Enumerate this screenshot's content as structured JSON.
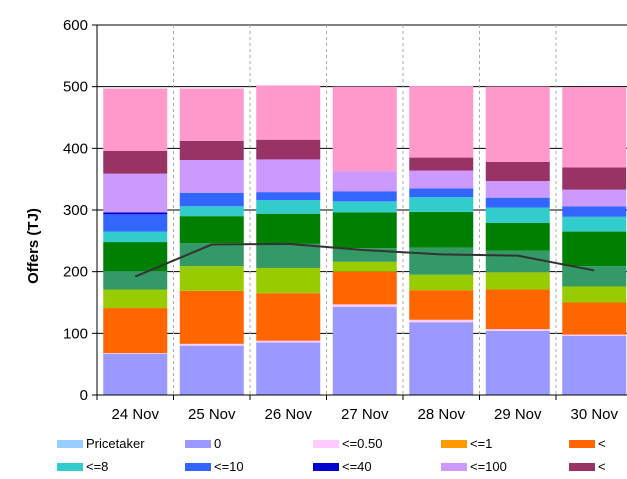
{
  "chart_data": {
    "type": "bar",
    "stacked": true,
    "categories": [
      "24 Nov",
      "25 Nov",
      "26 Nov",
      "27 Nov",
      "28 Nov",
      "29 Nov",
      "30 Nov"
    ],
    "ylabel": "Offers (TJ)",
    "ylim": [
      0,
      600
    ],
    "yticks": [
      0,
      100,
      200,
      300,
      400,
      500,
      600
    ],
    "grid": "horizontal solid, vertical dashed between categories",
    "legend_position": "bottom",
    "series": [
      {
        "name": "Pricetaker",
        "color": "#99ccff",
        "values": [
          0,
          0,
          0,
          0,
          0,
          0,
          0
        ]
      },
      {
        "name": "0",
        "color": "#9999ff",
        "values": [
          67,
          80,
          85,
          143,
          118,
          104,
          96
        ]
      },
      {
        "name": "<=0.50",
        "color": "#ffccff",
        "values": [
          1,
          3,
          3,
          4,
          4,
          3,
          2
        ]
      },
      {
        "name": "<=1",
        "color": "#ff9900",
        "values": [
          0,
          0,
          0,
          0,
          0,
          0,
          0
        ]
      },
      {
        "name": "<",
        "color": "#ff6600",
        "values": [
          73,
          86,
          77,
          53,
          48,
          64,
          52
        ]
      },
      {
        "name": "",
        "color": "#99cc00",
        "values": [
          30,
          40,
          41,
          16,
          25,
          28,
          26
        ]
      },
      {
        "name": "",
        "color": "#339966",
        "values": [
          30,
          37,
          39,
          22,
          44,
          35,
          33
        ]
      },
      {
        "name": "",
        "color": "#008000",
        "values": [
          47,
          44,
          49,
          58,
          58,
          45,
          56
        ]
      },
      {
        "name": "<=8",
        "color": "#33cccc",
        "values": [
          17,
          16,
          22,
          18,
          24,
          25,
          24
        ]
      },
      {
        "name": "<=10",
        "color": "#3366ff",
        "values": [
          28,
          22,
          13,
          16,
          14,
          16,
          17
        ]
      },
      {
        "name": "<=40",
        "color": "#0000cc",
        "values": [
          3,
          0,
          0,
          0,
          0,
          0,
          0
        ]
      },
      {
        "name": "<=100",
        "color": "#cc99ff",
        "values": [
          63,
          53,
          53,
          33,
          29,
          27,
          27
        ]
      },
      {
        "name": "<",
        "color": "#993366",
        "values": [
          37,
          31,
          32,
          0,
          21,
          31,
          36
        ]
      },
      {
        "name": "",
        "color": "#ff99cc",
        "values": [
          101,
          85,
          88,
          137,
          116,
          122,
          130
        ]
      }
    ],
    "line_series": {
      "name": "",
      "color": "#333333",
      "values": [
        192,
        244,
        245,
        235,
        228,
        226,
        202
      ]
    }
  },
  "legend": [
    {
      "label": "Pricetaker",
      "color": "#99ccff"
    },
    {
      "label": "0",
      "color": "#9999ff"
    },
    {
      "label": "<=0.50",
      "color": "#ffccff"
    },
    {
      "label": "<=1",
      "color": "#ff9900"
    },
    {
      "label": "<",
      "color": "#ff6600"
    },
    {
      "label": "<=8",
      "color": "#33cccc"
    },
    {
      "label": "<=10",
      "color": "#3366ff"
    },
    {
      "label": "<=40",
      "color": "#0000cc"
    },
    {
      "label": "<=100",
      "color": "#cc99ff"
    },
    {
      "label": "<",
      "color": "#993366"
    }
  ]
}
